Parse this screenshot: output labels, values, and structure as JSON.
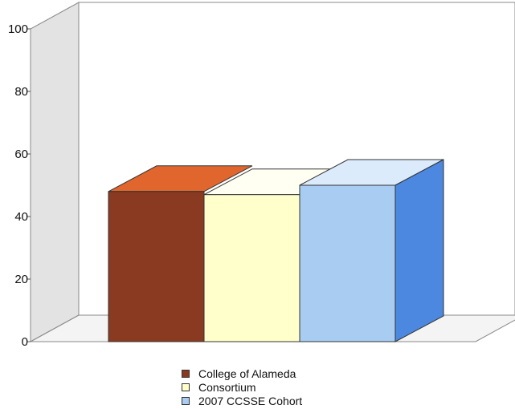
{
  "chart_data": {
    "type": "bar",
    "title": "",
    "xlabel": "",
    "ylabel": "",
    "ylim": [
      0,
      100
    ],
    "yticks": [
      0,
      20,
      40,
      60,
      80,
      100
    ],
    "grid": false,
    "legend_position": "bottom",
    "three_d": true,
    "categories": [
      ""
    ],
    "series": [
      {
        "name": "College of Alameda",
        "values": [
          48
        ],
        "color": "#8B3A22",
        "top_color": "#E0662E",
        "side_color": "#7a2f1a"
      },
      {
        "name": "Consortium",
        "values": [
          47
        ],
        "color": "#FFFFCC",
        "top_color": "#FFFFF2",
        "side_color": "#f2f2c0"
      },
      {
        "name": "2007 CCSSE Cohort",
        "values": [
          50
        ],
        "color": "#A9CCF2",
        "top_color": "#DCEBFB",
        "side_color": "#4C88E0"
      }
    ]
  }
}
